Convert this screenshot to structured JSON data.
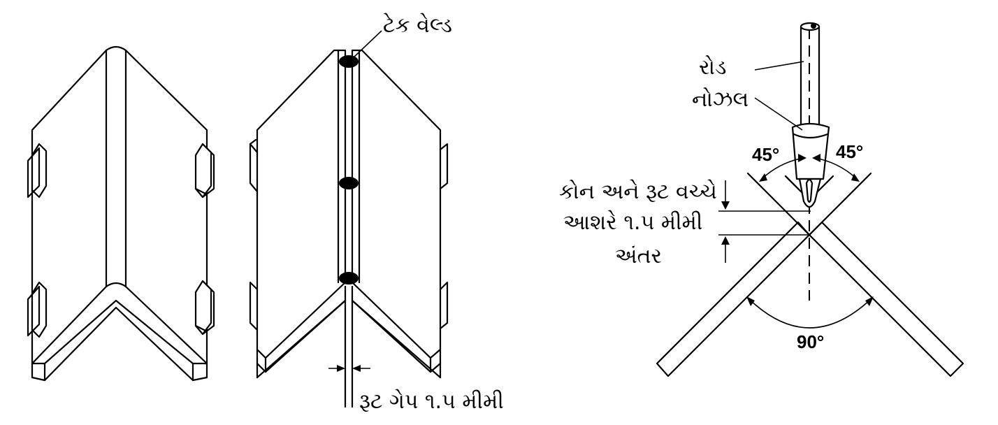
{
  "labels": {
    "tack_weld": "ટેક વેલ્ડ",
    "root_gap": "રૂટ ગેપ ૧.૫ મીમી",
    "rod": "રોડ",
    "nozzle": "નોઝલ",
    "cone_distance_line1": "કોન અને રૂટ વચ્ચે",
    "cone_distance_line2": "આશરે ૧.૫ મીમી",
    "cone_distance_line3": "અંતર",
    "angle_left": "45°",
    "angle_right": "45°",
    "angle_bottom": "90°"
  }
}
